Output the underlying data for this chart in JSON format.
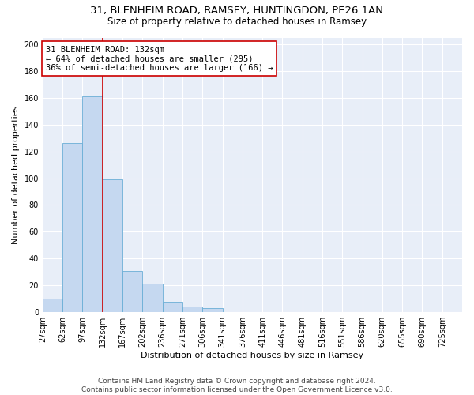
{
  "title1": "31, BLENHEIM ROAD, RAMSEY, HUNTINGDON, PE26 1AN",
  "title2": "Size of property relative to detached houses in Ramsey",
  "xlabel": "Distribution of detached houses by size in Ramsey",
  "ylabel": "Number of detached properties",
  "bin_labels": [
    "27sqm",
    "62sqm",
    "97sqm",
    "132sqm",
    "167sqm",
    "202sqm",
    "236sqm",
    "271sqm",
    "306sqm",
    "341sqm",
    "376sqm",
    "411sqm",
    "446sqm",
    "481sqm",
    "516sqm",
    "551sqm",
    "586sqm",
    "620sqm",
    "655sqm",
    "690sqm",
    "725sqm"
  ],
  "bar_values": [
    10,
    126,
    161,
    99,
    31,
    21,
    8,
    4,
    3,
    0,
    0,
    0,
    0,
    0,
    0,
    0,
    0,
    0,
    0,
    0,
    0
  ],
  "bar_color": "#c5d8f0",
  "bar_edge_color": "#6aaed6",
  "vline_x_index": 3,
  "vline_color": "#cc0000",
  "annotation_text": "31 BLENHEIM ROAD: 132sqm\n← 64% of detached houses are smaller (295)\n36% of semi-detached houses are larger (166) →",
  "annotation_box_color": "#ffffff",
  "annotation_box_edge_color": "#cc0000",
  "ylim": [
    0,
    205
  ],
  "yticks": [
    0,
    20,
    40,
    60,
    80,
    100,
    120,
    140,
    160,
    180,
    200
  ],
  "background_color": "#e8eef8",
  "footnote": "Contains HM Land Registry data © Crown copyright and database right 2024.\nContains public sector information licensed under the Open Government Licence v3.0.",
  "title1_fontsize": 9.5,
  "title2_fontsize": 8.5,
  "xlabel_fontsize": 8,
  "ylabel_fontsize": 8,
  "annotation_fontsize": 7.5,
  "footnote_fontsize": 6.5,
  "tick_fontsize": 7
}
